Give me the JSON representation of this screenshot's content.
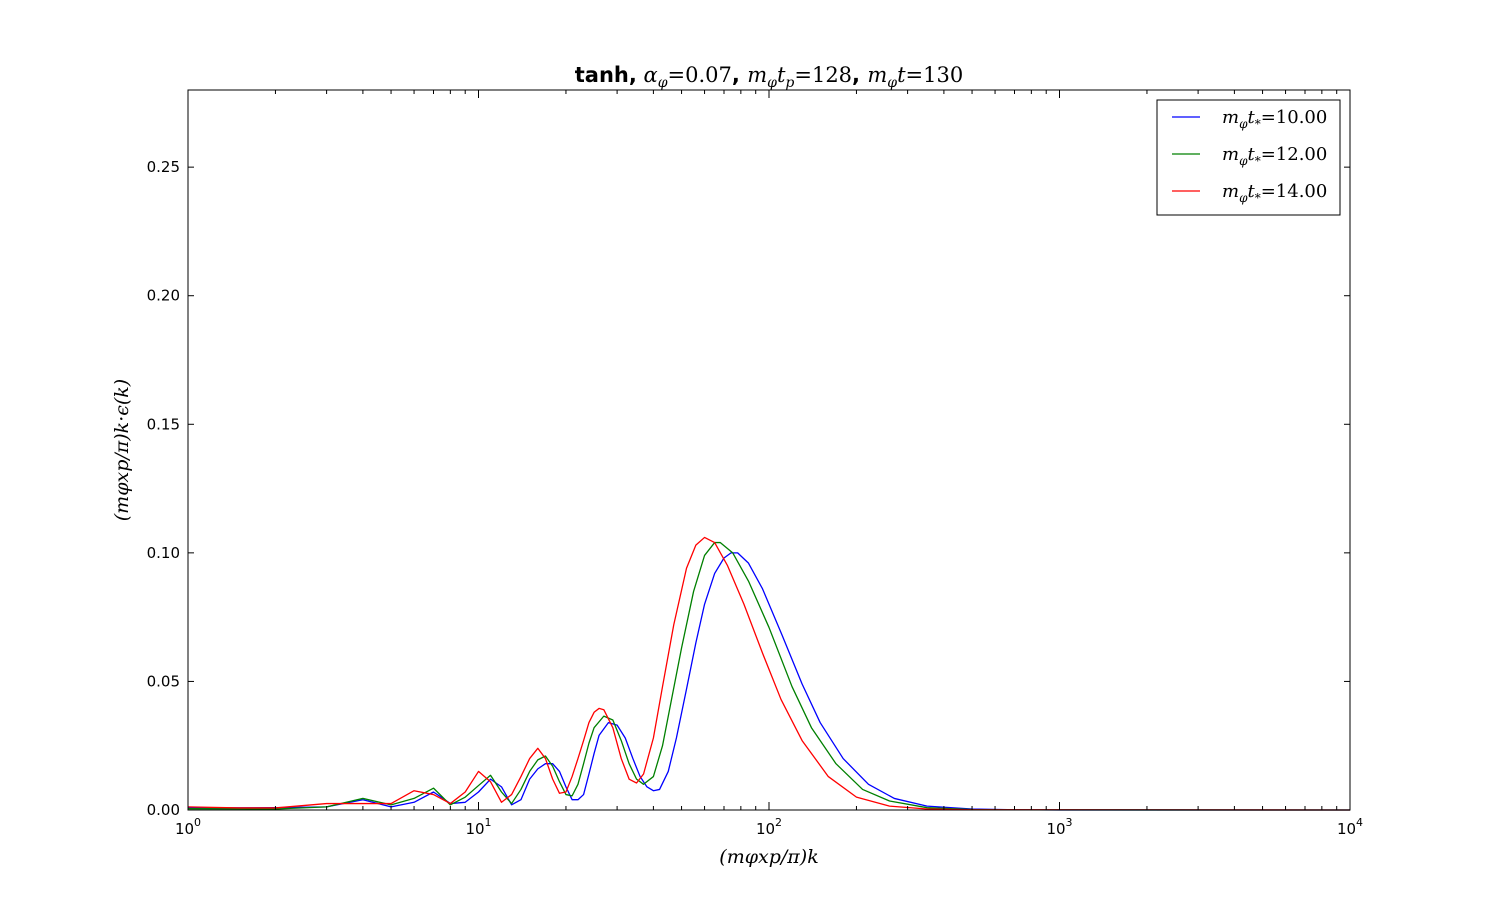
{
  "chart_data": {
    "type": "line",
    "title_prefix": "tanh,",
    "title_parts": [
      {
        "sym": "α",
        "sub": "φ",
        "val": "=0.07"
      },
      {
        "sym": "m",
        "sub": "φ",
        "sym2": "t",
        "sub2": "p",
        "val": "=128"
      },
      {
        "sym": "m",
        "sub": "φ",
        "sym2": "t",
        "sub2": "",
        "val": "=130"
      }
    ],
    "xlabel": "(mφxp/π)k",
    "ylabel": "(mφxp/π)k·ϵ(k)",
    "xscale": "log",
    "xlim": [
      1,
      10000
    ],
    "ylim": [
      0,
      0.28
    ],
    "x_ticks": [
      {
        "base": "10",
        "exp": "0"
      },
      {
        "base": "10",
        "exp": "1"
      },
      {
        "base": "10",
        "exp": "2"
      },
      {
        "base": "10",
        "exp": "3"
      },
      {
        "base": "10",
        "exp": "4"
      }
    ],
    "y_ticks": [
      "0.00",
      "0.05",
      "0.10",
      "0.15",
      "0.20",
      "0.25"
    ],
    "grid": false,
    "legend_position": "top-right",
    "series": [
      {
        "name": "mφt*=10.00",
        "legend_value": "=10.00",
        "color": "#0000ff",
        "points": [
          [
            1,
            0.0008
          ],
          [
            2,
            0.0009
          ],
          [
            3,
            0.0012
          ],
          [
            4,
            0.004
          ],
          [
            5,
            0.0012
          ],
          [
            6,
            0.003
          ],
          [
            7,
            0.007
          ],
          [
            8,
            0.0025
          ],
          [
            9,
            0.003
          ],
          [
            10,
            0.007
          ],
          [
            11,
            0.012
          ],
          [
            12,
            0.009
          ],
          [
            13,
            0.002
          ],
          [
            14,
            0.004
          ],
          [
            15,
            0.012
          ],
          [
            16,
            0.016
          ],
          [
            17,
            0.018
          ],
          [
            18,
            0.018
          ],
          [
            19,
            0.015
          ],
          [
            20,
            0.009
          ],
          [
            21,
            0.004
          ],
          [
            22,
            0.004
          ],
          [
            23,
            0.006
          ],
          [
            24,
            0.014
          ],
          [
            25,
            0.022
          ],
          [
            26,
            0.029
          ],
          [
            28,
            0.034
          ],
          [
            30,
            0.033
          ],
          [
            32,
            0.028
          ],
          [
            34,
            0.02
          ],
          [
            36,
            0.013
          ],
          [
            38,
            0.009
          ],
          [
            40,
            0.0075
          ],
          [
            42,
            0.008
          ],
          [
            45,
            0.015
          ],
          [
            48,
            0.028
          ],
          [
            52,
            0.047
          ],
          [
            56,
            0.065
          ],
          [
            60,
            0.08
          ],
          [
            65,
            0.092
          ],
          [
            70,
            0.098
          ],
          [
            74,
            0.1
          ],
          [
            78,
            0.1
          ],
          [
            85,
            0.096
          ],
          [
            95,
            0.086
          ],
          [
            110,
            0.069
          ],
          [
            130,
            0.049
          ],
          [
            150,
            0.034
          ],
          [
            180,
            0.02
          ],
          [
            220,
            0.01
          ],
          [
            270,
            0.0045
          ],
          [
            350,
            0.0015
          ],
          [
            500,
            0.0004
          ],
          [
            700,
            0.0001
          ],
          [
            1000,
            3e-05
          ],
          [
            10000,
            0
          ]
        ]
      },
      {
        "name": "mφt*=12.00",
        "legend_value": "=12.00",
        "color": "#008000",
        "points": [
          [
            1,
            0.0005
          ],
          [
            2,
            0.0004
          ],
          [
            3,
            0.0012
          ],
          [
            4,
            0.0045
          ],
          [
            5,
            0.002
          ],
          [
            6,
            0.0045
          ],
          [
            7,
            0.0085
          ],
          [
            8,
            0.002
          ],
          [
            9,
            0.005
          ],
          [
            10,
            0.0095
          ],
          [
            11,
            0.0135
          ],
          [
            12,
            0.007
          ],
          [
            13,
            0.0025
          ],
          [
            14,
            0.008
          ],
          [
            15,
            0.015
          ],
          [
            16,
            0.0195
          ],
          [
            17,
            0.021
          ],
          [
            18,
            0.017
          ],
          [
            19,
            0.011
          ],
          [
            20,
            0.006
          ],
          [
            21,
            0.0055
          ],
          [
            22,
            0.01
          ],
          [
            23,
            0.018
          ],
          [
            24,
            0.026
          ],
          [
            25,
            0.032
          ],
          [
            27,
            0.0365
          ],
          [
            29,
            0.035
          ],
          [
            31,
            0.027
          ],
          [
            33,
            0.018
          ],
          [
            35,
            0.012
          ],
          [
            37,
            0.01
          ],
          [
            40,
            0.013
          ],
          [
            43,
            0.025
          ],
          [
            46,
            0.042
          ],
          [
            50,
            0.063
          ],
          [
            55,
            0.085
          ],
          [
            60,
            0.099
          ],
          [
            65,
            0.104
          ],
          [
            68,
            0.104
          ],
          [
            75,
            0.1
          ],
          [
            85,
            0.089
          ],
          [
            100,
            0.071
          ],
          [
            120,
            0.048
          ],
          [
            140,
            0.032
          ],
          [
            170,
            0.018
          ],
          [
            210,
            0.008
          ],
          [
            260,
            0.0035
          ],
          [
            350,
            0.0009
          ],
          [
            500,
            0.0002
          ],
          [
            700,
            5e-05
          ],
          [
            10000,
            0
          ]
        ]
      },
      {
        "name": "mφt*=14.00",
        "legend_value": "=14.00",
        "color": "#ff0000",
        "points": [
          [
            1,
            0.0012
          ],
          [
            1.5,
            0.0008
          ],
          [
            2,
            0.0008
          ],
          [
            3,
            0.0025
          ],
          [
            4,
            0.0025
          ],
          [
            5,
            0.0025
          ],
          [
            6,
            0.0075
          ],
          [
            7,
            0.006
          ],
          [
            8,
            0.0025
          ],
          [
            9,
            0.007
          ],
          [
            10,
            0.015
          ],
          [
            11,
            0.011
          ],
          [
            12,
            0.003
          ],
          [
            13,
            0.006
          ],
          [
            14,
            0.013
          ],
          [
            15,
            0.02
          ],
          [
            16,
            0.024
          ],
          [
            17,
            0.02
          ],
          [
            18,
            0.012
          ],
          [
            19,
            0.0065
          ],
          [
            20,
            0.007
          ],
          [
            21,
            0.013
          ],
          [
            22,
            0.02
          ],
          [
            23,
            0.027
          ],
          [
            24,
            0.034
          ],
          [
            25,
            0.038
          ],
          [
            26,
            0.0395
          ],
          [
            27,
            0.039
          ],
          [
            29,
            0.032
          ],
          [
            31,
            0.02
          ],
          [
            33,
            0.012
          ],
          [
            35,
            0.0105
          ],
          [
            37,
            0.014
          ],
          [
            40,
            0.028
          ],
          [
            43,
            0.048
          ],
          [
            47,
            0.072
          ],
          [
            52,
            0.094
          ],
          [
            56,
            0.103
          ],
          [
            60,
            0.106
          ],
          [
            65,
            0.104
          ],
          [
            72,
            0.095
          ],
          [
            82,
            0.08
          ],
          [
            95,
            0.061
          ],
          [
            110,
            0.043
          ],
          [
            130,
            0.027
          ],
          [
            160,
            0.013
          ],
          [
            200,
            0.005
          ],
          [
            260,
            0.0015
          ],
          [
            350,
            0.0004
          ],
          [
            500,
            0.0001
          ],
          [
            10000,
            0
          ]
        ]
      }
    ]
  }
}
